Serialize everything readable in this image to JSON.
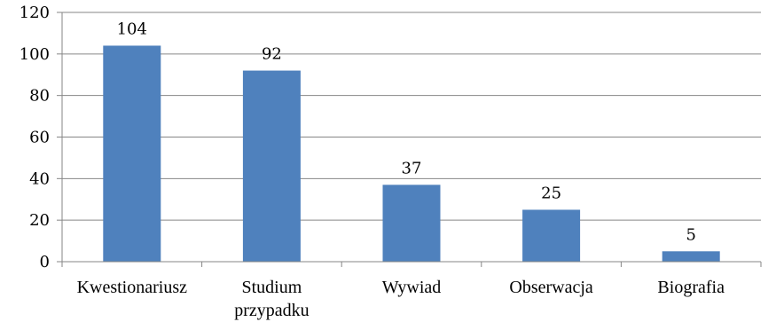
{
  "chart_data": {
    "type": "bar",
    "title": "",
    "xlabel": "",
    "ylabel": "",
    "categories": [
      [
        "Kwestionariusz"
      ],
      [
        "Studium",
        "przypadku"
      ],
      [
        "Wywiad"
      ],
      [
        "Obserwacja"
      ],
      [
        "Biografia"
      ]
    ],
    "values": [
      104,
      92,
      37,
      25,
      5
    ],
    "data_labels": [
      "104",
      "92",
      "37",
      "25",
      "5"
    ],
    "yticks": [
      0,
      20,
      40,
      60,
      80,
      100,
      120
    ],
    "ytick_labels": [
      "0",
      "20",
      "40",
      "60",
      "80",
      "100",
      "120"
    ],
    "ylim": [
      0,
      120
    ],
    "grid": true,
    "legend": "none",
    "colors": {
      "bar": "#4f81bd",
      "grid": "#868686",
      "axis": "#868686"
    }
  }
}
